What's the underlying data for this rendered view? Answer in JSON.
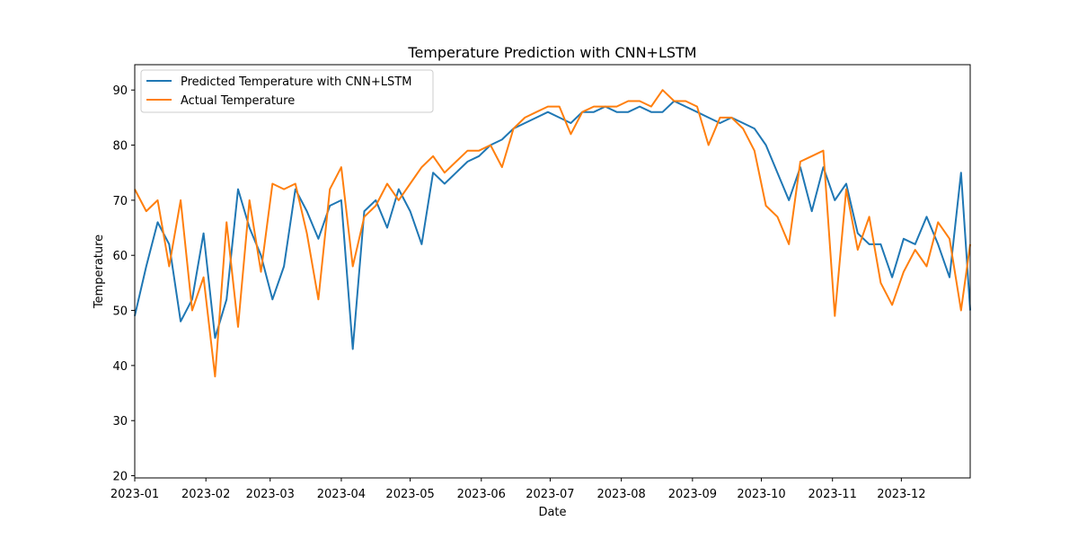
{
  "chart_data": {
    "type": "line",
    "title": "Temperature Prediction with CNN+LSTM",
    "xlabel": "Date",
    "ylabel": "Temperature",
    "xlim": [
      "2023-01-01",
      "2023-12-31"
    ],
    "ylim": [
      19.6,
      94.6
    ],
    "x_ticks": [
      "2023-01",
      "2023-02",
      "2023-03",
      "2023-04",
      "2023-05",
      "2023-06",
      "2023-07",
      "2023-08",
      "2023-09",
      "2023-10",
      "2023-11",
      "2023-12"
    ],
    "y_ticks": [
      20,
      30,
      40,
      50,
      60,
      70,
      80,
      90
    ],
    "grid": false,
    "legend_position": "upper-left",
    "x": [
      "2023-01-01",
      "2023-01-06",
      "2023-01-11",
      "2023-01-16",
      "2023-01-21",
      "2023-01-26",
      "2023-01-31",
      "2023-02-05",
      "2023-02-10",
      "2023-02-15",
      "2023-02-20",
      "2023-02-25",
      "2023-03-02",
      "2023-03-07",
      "2023-03-12",
      "2023-03-17",
      "2023-03-22",
      "2023-03-27",
      "2023-04-01",
      "2023-04-06",
      "2023-04-11",
      "2023-04-16",
      "2023-04-21",
      "2023-04-26",
      "2023-05-01",
      "2023-05-06",
      "2023-05-11",
      "2023-05-16",
      "2023-05-21",
      "2023-05-26",
      "2023-05-31",
      "2023-06-05",
      "2023-06-10",
      "2023-06-15",
      "2023-06-20",
      "2023-06-25",
      "2023-06-30",
      "2023-07-05",
      "2023-07-10",
      "2023-07-15",
      "2023-07-20",
      "2023-07-25",
      "2023-07-30",
      "2023-08-04",
      "2023-08-09",
      "2023-08-14",
      "2023-08-19",
      "2023-08-24",
      "2023-08-29",
      "2023-09-03",
      "2023-09-08",
      "2023-09-13",
      "2023-09-18",
      "2023-09-23",
      "2023-09-28",
      "2023-10-03",
      "2023-10-08",
      "2023-10-13",
      "2023-10-18",
      "2023-10-23",
      "2023-10-28",
      "2023-11-02",
      "2023-11-07",
      "2023-11-12",
      "2023-11-17",
      "2023-11-22",
      "2023-11-27",
      "2023-12-02",
      "2023-12-07",
      "2023-12-12",
      "2023-12-17",
      "2023-12-22",
      "2023-12-27",
      "2023-12-31"
    ],
    "series": [
      {
        "name": "Predicted Temperature with CNN+LSTM",
        "color": "#1f77b4",
        "values": [
          49,
          58,
          66,
          62,
          48,
          52,
          64,
          45,
          52,
          72,
          65,
          60,
          52,
          58,
          72,
          68,
          63,
          69,
          70,
          43,
          68,
          70,
          65,
          72,
          68,
          62,
          75,
          73,
          75,
          77,
          78,
          80,
          81,
          83,
          84,
          85,
          86,
          85,
          84,
          86,
          86,
          87,
          86,
          86,
          87,
          86,
          86,
          88,
          87,
          86,
          85,
          84,
          85,
          84,
          83,
          80,
          75,
          70,
          76,
          68,
          76,
          70,
          73,
          64,
          62,
          62,
          56,
          63,
          62,
          67,
          62,
          56,
          75,
          50
        ]
      },
      {
        "name": "Actual Temperature",
        "color": "#ff7f0e",
        "values": [
          72,
          68,
          70,
          58,
          70,
          50,
          56,
          38,
          66,
          47,
          70,
          57,
          73,
          72,
          73,
          64,
          52,
          72,
          76,
          58,
          67,
          69,
          73,
          70,
          73,
          76,
          78,
          75,
          77,
          79,
          79,
          80,
          76,
          83,
          85,
          86,
          87,
          87,
          82,
          86,
          87,
          87,
          87,
          88,
          88,
          87,
          90,
          88,
          88,
          87,
          80,
          85,
          85,
          83,
          79,
          69,
          67,
          62,
          77,
          78,
          79,
          49,
          72,
          61,
          67,
          55,
          51,
          57,
          61,
          58,
          66,
          63,
          50,
          62
        ]
      }
    ]
  }
}
